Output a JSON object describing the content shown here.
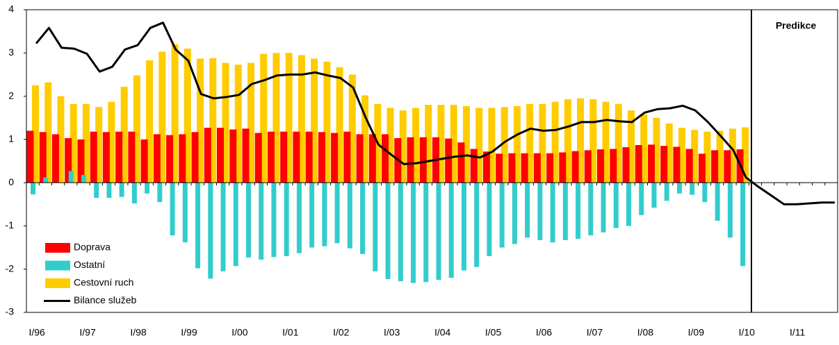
{
  "chart_data": {
    "type": "bar",
    "annotation": "Predikce",
    "categories": [
      "I/96",
      null,
      null,
      null,
      "I/97",
      null,
      null,
      null,
      "I/98",
      null,
      null,
      null,
      "I/99",
      null,
      null,
      null,
      "I/00",
      null,
      null,
      null,
      "I/01",
      null,
      null,
      null,
      "I/02",
      null,
      null,
      null,
      "I/03",
      null,
      null,
      null,
      "I/04",
      null,
      null,
      null,
      "I/05",
      null,
      null,
      null,
      "I/06",
      null,
      null,
      null,
      "I/07",
      null,
      null,
      null,
      "I/08",
      null,
      null,
      null,
      "I/09",
      null,
      null,
      null,
      "I/10",
      null,
      null,
      null,
      "I/11",
      null,
      null,
      null
    ],
    "series": [
      {
        "name": "Doprava",
        "color": "#ff0000",
        "kind": "bar",
        "values": [
          1.2,
          1.17,
          1.12,
          1.03,
          1.0,
          1.18,
          1.17,
          1.18,
          1.18,
          1.0,
          1.12,
          1.1,
          1.12,
          1.17,
          1.27,
          1.27,
          1.23,
          1.25,
          1.15,
          1.18,
          1.18,
          1.18,
          1.18,
          1.17,
          1.15,
          1.18,
          1.12,
          1.12,
          1.12,
          1.03,
          1.05,
          1.05,
          1.05,
          1.02,
          0.93,
          0.78,
          0.72,
          0.67,
          0.68,
          0.68,
          0.68,
          0.68,
          0.7,
          0.73,
          0.75,
          0.77,
          0.78,
          0.82,
          0.87,
          0.88,
          0.85,
          0.83,
          0.78,
          0.67,
          0.75,
          0.75,
          0.77,
          null,
          null,
          null,
          null,
          null,
          null,
          null
        ]
      },
      {
        "name": "Ostatní",
        "color": "#33cccc",
        "kind": "bar",
        "values": [
          -0.27,
          0.12,
          0,
          0.27,
          0.18,
          -0.35,
          -0.35,
          -0.33,
          -0.48,
          -0.25,
          -0.45,
          -1.22,
          -1.38,
          -1.98,
          -2.22,
          -2.05,
          -1.93,
          -1.73,
          -1.78,
          -1.72,
          -1.7,
          -1.63,
          -1.5,
          -1.47,
          -1.4,
          -1.52,
          -1.65,
          -2.05,
          -2.23,
          -2.28,
          -2.32,
          -2.3,
          -2.25,
          -2.2,
          -2.03,
          -1.95,
          -1.7,
          -1.5,
          -1.42,
          -1.27,
          -1.33,
          -1.38,
          -1.33,
          -1.3,
          -1.22,
          -1.15,
          -1.05,
          -1.0,
          -0.75,
          -0.58,
          -0.42,
          -0.25,
          -0.28,
          -0.45,
          -0.88,
          -1.27,
          -1.93,
          null,
          null,
          null,
          null,
          null,
          null,
          null
        ]
      },
      {
        "name": "Cestovní ruch",
        "color": "#ffcc00",
        "kind": "bar",
        "values": [
          2.25,
          2.32,
          2.0,
          1.82,
          1.82,
          1.75,
          1.87,
          2.22,
          2.48,
          2.83,
          3.03,
          3.2,
          3.1,
          2.87,
          2.88,
          2.77,
          2.73,
          2.77,
          2.98,
          3.0,
          3.0,
          2.95,
          2.87,
          2.8,
          2.67,
          2.5,
          2.02,
          1.82,
          1.73,
          1.67,
          1.73,
          1.8,
          1.8,
          1.8,
          1.77,
          1.73,
          1.73,
          1.75,
          1.77,
          1.82,
          1.82,
          1.87,
          1.93,
          1.95,
          1.93,
          1.87,
          1.82,
          1.67,
          1.58,
          1.5,
          1.37,
          1.27,
          1.22,
          1.18,
          1.2,
          1.25,
          1.28,
          null,
          null,
          null,
          null,
          null,
          null,
          null
        ]
      },
      {
        "name": "Bilance služeb",
        "color": "#000000",
        "kind": "line",
        "values": [
          3.22,
          3.58,
          3.12,
          3.1,
          2.98,
          2.57,
          2.68,
          3.08,
          3.18,
          3.58,
          3.7,
          3.08,
          2.82,
          2.05,
          1.95,
          1.98,
          2.03,
          2.28,
          2.37,
          2.48,
          2.5,
          2.5,
          2.55,
          2.48,
          2.42,
          2.2,
          1.5,
          0.88,
          0.65,
          0.43,
          0.45,
          0.5,
          0.55,
          0.6,
          0.63,
          0.58,
          0.72,
          0.95,
          1.12,
          1.25,
          1.2,
          1.22,
          1.3,
          1.4,
          1.4,
          1.45,
          1.42,
          1.4,
          1.62,
          1.7,
          1.72,
          1.78,
          1.67,
          1.4,
          1.08,
          0.75,
          0.12,
          -0.1,
          -0.3,
          -0.5,
          -0.5,
          -0.48,
          -0.46,
          -0.46
        ]
      }
    ],
    "ylim": [
      -3,
      4
    ],
    "yticks": [
      -3,
      -2,
      -1,
      0,
      1,
      2,
      3,
      4
    ],
    "grid": false,
    "legend": "lower left"
  }
}
